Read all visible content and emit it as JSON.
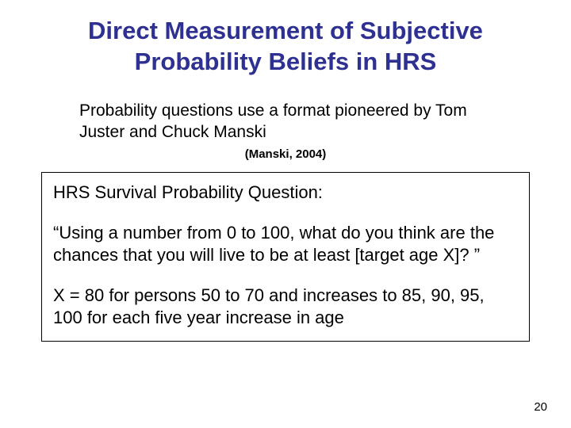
{
  "slide": {
    "title": "Direct Measurement of Subjective Probability Beliefs in HRS",
    "intro": "Probability questions use a format pioneered by Tom Juster and Chuck Manski",
    "citation": "(Manski, 2004)",
    "box": {
      "heading": "HRS Survival Probability Question:",
      "quote": "“Using a number from 0 to 100, what do you think are the chances that you will live to be at least [target age X]? ”",
      "note": "X = 80 for persons 50 to 70 and increases to 85, 90, 95, 100 for each five year increase in age"
    },
    "pageNumber": "20"
  },
  "colors": {
    "title": "#2e3192",
    "text": "#000000",
    "background": "#ffffff",
    "border": "#000000"
  }
}
